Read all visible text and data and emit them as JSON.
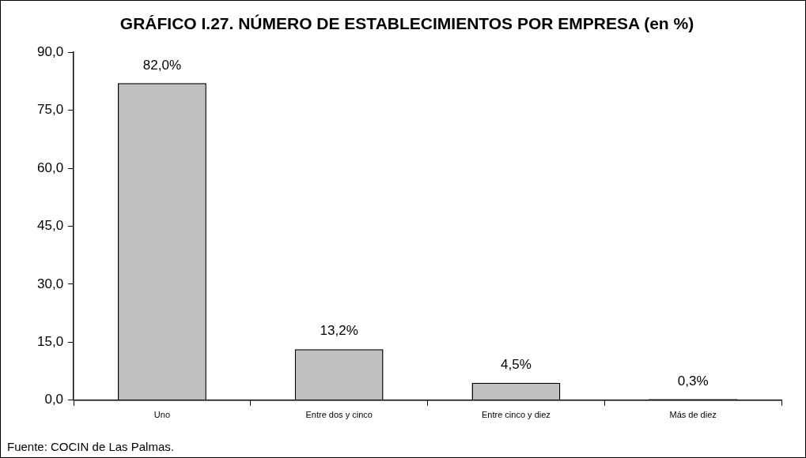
{
  "chart_data": {
    "type": "bar",
    "title": "GRÁFICO I.27. NÚMERO DE ESTABLECIMIENTOS POR EMPRESA (en %)",
    "categories": [
      "Uno",
      "Entre dos y cinco",
      "Entre cinco y diez",
      "Más de diez"
    ],
    "values": [
      82.0,
      13.2,
      4.5,
      0.3
    ],
    "value_labels": [
      "82,0%",
      "13,2%",
      "4,5%",
      "0,3%"
    ],
    "color": "#c0c0c0",
    "ylim": [
      0,
      90
    ],
    "yticks": [
      {
        "value": 0,
        "label": "0,0"
      },
      {
        "value": 15,
        "label": "15,0"
      },
      {
        "value": 30,
        "label": "30,0"
      },
      {
        "value": 45,
        "label": "45,0"
      },
      {
        "value": 60,
        "label": "60,0"
      },
      {
        "value": 75,
        "label": "75,0"
      },
      {
        "value": 90,
        "label": "90,0"
      }
    ],
    "grid": false,
    "legend": false,
    "annotations": [
      "Fuente: COCIN de Las Palmas."
    ]
  }
}
